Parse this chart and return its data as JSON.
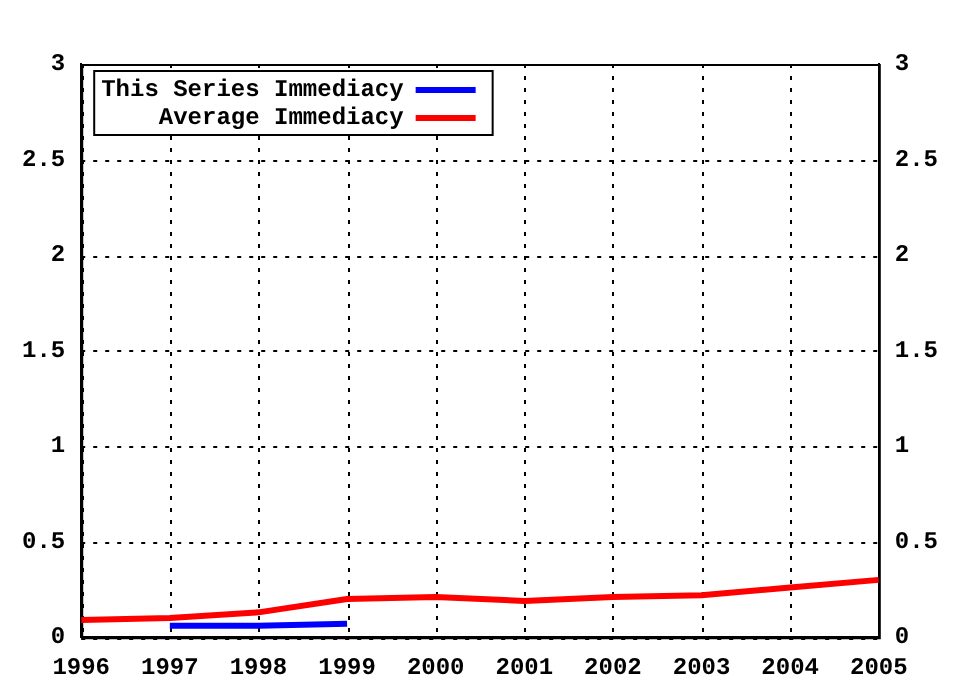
{
  "chart_data": {
    "type": "line",
    "x": [
      1996,
      1997,
      1998,
      1999,
      2000,
      2001,
      2002,
      2003,
      2004,
      2005
    ],
    "series": [
      {
        "name": "This Series Immediacy",
        "color": "#0000ff",
        "x": [
          1997,
          1998,
          1999
        ],
        "values": [
          0.06,
          0.06,
          0.07
        ]
      },
      {
        "name": "Average Immediacy",
        "color": "#ff0000",
        "values": [
          0.09,
          0.1,
          0.13,
          0.2,
          0.21,
          0.19,
          0.21,
          0.22,
          0.26,
          0.3
        ]
      }
    ],
    "xlim": [
      1996,
      2005
    ],
    "xticks": [
      1996,
      1997,
      1998,
      1999,
      2000,
      2001,
      2002,
      2003,
      2004,
      2005
    ],
    "ylim": [
      0,
      3
    ],
    "yticks": [
      0,
      0.5,
      1,
      1.5,
      2,
      2.5,
      3
    ],
    "y2lim": [
      0,
      3
    ],
    "y2ticks": [
      0,
      0.5,
      1,
      1.5,
      2,
      2.5,
      3
    ],
    "grid": true,
    "legend": "top left",
    "marker": "none",
    "line_style": "solid"
  }
}
